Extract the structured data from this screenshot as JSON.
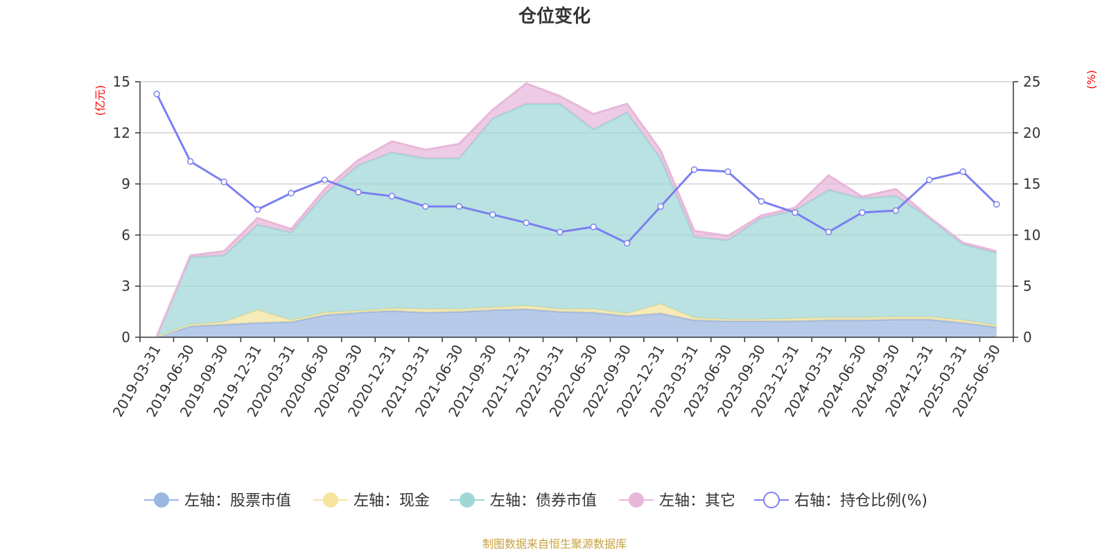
{
  "chart_data": {
    "type": "area",
    "title": "仓位变化",
    "source": "制图数据来自恒生聚源数据库",
    "left_axis": {
      "unit": "(亿元)",
      "min": 0,
      "max": 15,
      "ticks": [
        "0",
        "3",
        "6",
        "9",
        "12",
        "15"
      ]
    },
    "right_axis": {
      "unit": "(%)",
      "min": 0,
      "max": 25,
      "ticks": [
        "0",
        "5",
        "10",
        "15",
        "20",
        "25"
      ]
    },
    "categories": [
      "2019-03-31",
      "2019-06-30",
      "2019-09-30",
      "2019-12-31",
      "2020-03-31",
      "2020-06-30",
      "2020-09-30",
      "2020-12-31",
      "2021-03-31",
      "2021-06-30",
      "2021-09-30",
      "2021-12-31",
      "2022-03-31",
      "2022-06-30",
      "2022-09-30",
      "2022-12-31",
      "2023-03-31",
      "2023-06-30",
      "2023-09-30",
      "2023-12-31",
      "2024-03-31",
      "2024-06-30",
      "2024-09-30",
      "2024-12-31",
      "2025-03-31",
      "2025-06-30"
    ],
    "series": [
      {
        "name": "左轴：股票市值",
        "axis": "left",
        "color": "#9bb6e0",
        "values": [
          0.05,
          0.65,
          0.75,
          0.85,
          0.9,
          1.3,
          1.45,
          1.55,
          1.45,
          1.5,
          1.6,
          1.65,
          1.5,
          1.45,
          1.25,
          1.4,
          1.0,
          0.95,
          0.95,
          0.95,
          1.0,
          1.0,
          1.05,
          1.05,
          0.85,
          0.6
        ]
      },
      {
        "name": "左轴：现金",
        "axis": "left",
        "color": "#f5e3a0",
        "values": [
          0.0,
          0.1,
          0.15,
          0.75,
          0.1,
          0.15,
          0.1,
          0.15,
          0.2,
          0.15,
          0.15,
          0.2,
          0.15,
          0.2,
          0.15,
          0.55,
          0.15,
          0.1,
          0.1,
          0.15,
          0.15,
          0.15,
          0.15,
          0.15,
          0.15,
          0.1
        ]
      },
      {
        "name": "左轴：债券市值",
        "axis": "left",
        "color": "#9fd7d7",
        "values": [
          0.0,
          3.95,
          3.9,
          5.0,
          5.15,
          6.95,
          8.55,
          9.15,
          8.85,
          8.85,
          11.1,
          11.85,
          12.05,
          10.55,
          11.8,
          8.55,
          4.75,
          4.65,
          5.95,
          6.35,
          7.5,
          7.0,
          7.1,
          5.8,
          4.45,
          4.25
        ]
      },
      {
        "name": "左轴：其它",
        "axis": "left",
        "color": "#e8b7d9",
        "values": [
          0.0,
          0.1,
          0.25,
          0.4,
          0.2,
          0.3,
          0.3,
          0.65,
          0.5,
          0.85,
          0.5,
          1.2,
          0.45,
          0.9,
          0.5,
          0.45,
          0.35,
          0.25,
          0.15,
          0.15,
          0.85,
          0.1,
          0.4,
          0.05,
          0.1,
          0.1
        ]
      },
      {
        "name": "右轴：持仓比例(%)",
        "axis": "right",
        "color": "#7b7ff0",
        "values": [
          23.8,
          17.2,
          15.2,
          12.5,
          14.1,
          15.4,
          14.2,
          13.8,
          12.8,
          12.8,
          12.0,
          11.2,
          10.3,
          10.8,
          9.2,
          12.8,
          16.4,
          16.2,
          13.3,
          12.2,
          10.3,
          12.2,
          12.4,
          15.4,
          16.2,
          13.0
        ]
      }
    ],
    "legend_position": "bottom",
    "grid": true
  }
}
